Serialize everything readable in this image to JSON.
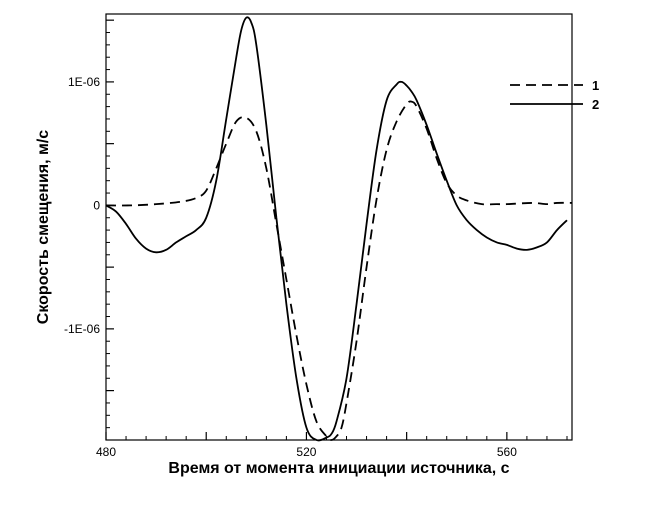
{
  "chart_data": {
    "type": "line",
    "title": "",
    "xlabel": "Время от момента инициации источника, с",
    "ylabel": "Скорость смещения, м/с",
    "xlim": [
      480,
      573
    ],
    "ylim": [
      -1.9e-06,
      1.55e-06
    ],
    "x_ticks": [
      480,
      500,
      520,
      540,
      560
    ],
    "x_tick_labels": [
      "480",
      "",
      "520",
      "",
      "560"
    ],
    "y_ticks": [
      -1.5e-06,
      -1e-06,
      -5e-07,
      0,
      5e-07,
      1e-06,
      1.5e-06
    ],
    "y_tick_labels": [
      "",
      "-1E-06",
      "",
      "0",
      "",
      "1E-06",
      ""
    ],
    "grid": false,
    "legend_position": "top-right",
    "series": [
      {
        "name": "1",
        "style": "dashed",
        "color": "#000000",
        "x": [
          480,
          485,
          490,
          495,
          498,
          500,
          502,
          504,
          506,
          508,
          510,
          512,
          514,
          516,
          518,
          520,
          522,
          524,
          525,
          526,
          527,
          528,
          530,
          532,
          534,
          536,
          538,
          540,
          541,
          542,
          544,
          546,
          548,
          550,
          552,
          555,
          558,
          560,
          565,
          568,
          570,
          573
        ],
        "y": [
          0,
          0,
          1e-08,
          3e-08,
          6e-08,
          1.2e-07,
          3e-07,
          5e-07,
          6.8e-07,
          7.1e-07,
          6e-07,
          3e-07,
          -1.5e-07,
          -6e-07,
          -1.05e-06,
          -1.45e-06,
          -1.75e-06,
          -1.87e-06,
          -1.9e-06,
          -1.87e-06,
          -1.8e-06,
          -1.6e-06,
          -1.1e-06,
          -5e-07,
          5e-08,
          4.5e-07,
          6.8e-07,
          8.2e-07,
          8.4e-07,
          8e-07,
          6.2e-07,
          3.8e-07,
          1.8e-07,
          8e-08,
          4e-08,
          1e-08,
          1e-08,
          1e-08,
          2e-08,
          1e-08,
          2e-08,
          2e-08
        ]
      },
      {
        "name": "2",
        "style": "solid",
        "color": "#000000",
        "x": [
          480,
          482,
          484,
          486,
          488,
          490,
          492,
          494,
          496,
          498,
          500,
          502,
          504,
          506,
          507,
          508,
          509,
          510,
          512,
          514,
          516,
          518,
          520,
          522,
          524,
          525,
          526,
          528,
          530,
          532,
          534,
          536,
          538,
          539,
          540,
          541,
          542,
          544,
          546,
          548,
          550,
          552,
          554,
          556,
          558,
          560,
          562,
          564,
          566,
          568,
          570,
          572
        ],
        "y": [
          0,
          -5e-08,
          -1.5e-07,
          -2.7e-07,
          -3.5e-07,
          -3.8e-07,
          -3.6e-07,
          -3e-07,
          -2.5e-07,
          -2e-07,
          -1e-07,
          2e-07,
          7e-07,
          1.2e-06,
          1.42e-06,
          1.52e-06,
          1.48e-06,
          1.3e-06,
          6.5e-07,
          -1e-07,
          -8e-07,
          -1.4e-06,
          -1.8e-06,
          -1.9e-06,
          -1.88e-06,
          -1.85e-06,
          -1.75e-06,
          -1.4e-06,
          -8e-07,
          -1.5e-07,
          4.5e-07,
          8.5e-07,
          9.8e-07,
          1e-06,
          9.7e-07,
          9.2e-07,
          8.5e-07,
          6.5e-07,
          4.2e-07,
          2e-07,
          0.0,
          -1.2e-07,
          -2e-07,
          -2.6e-07,
          -3e-07,
          -3.2e-07,
          -3.5e-07,
          -3.6e-07,
          -3.4e-07,
          -3e-07,
          -2e-07,
          -1.2e-07
        ]
      }
    ]
  }
}
